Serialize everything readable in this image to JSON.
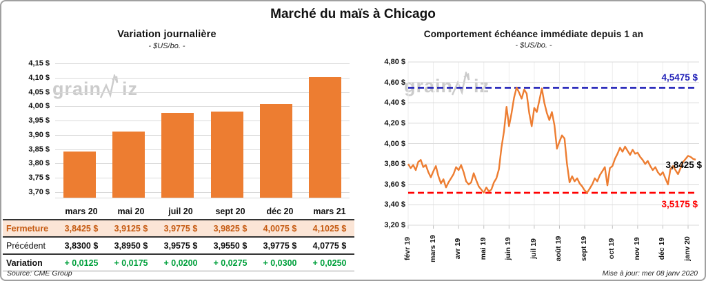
{
  "title": "Marché du maïs à Chicago",
  "footer": {
    "source": "Source: CME Group",
    "updated": "Mise à jour: mer 08 janv 2020"
  },
  "watermark": {
    "left_text": "grain",
    "right_text": "iz"
  },
  "colors": {
    "orange": "#ED7D31",
    "fermeture_text": "#C55A11",
    "fermeture_bg": "#FBE5D6",
    "variation_green": "#00A03C",
    "max_blue": "#2121B8",
    "min_red": "#FF0000",
    "gridline": "#D9D9D9",
    "watermark_gray": "#C3C3C3"
  },
  "table": {
    "columns": [
      "mars 20",
      "mai 20",
      "juil 20",
      "sept 20",
      "déc 20",
      "mars 21"
    ],
    "rows": [
      {
        "label": "Fermeture",
        "style": "fermeture",
        "values": [
          "3,8425 $",
          "3,9125 $",
          "3,9775 $",
          "3,9825 $",
          "4,0075 $",
          "4,1025 $"
        ]
      },
      {
        "label": "Précédent",
        "style": "precedent",
        "values": [
          "3,8300 $",
          "3,8950 $",
          "3,9575 $",
          "3,9550 $",
          "3,9775 $",
          "4,0775 $"
        ]
      },
      {
        "label": "Variation",
        "style": "variation",
        "values": [
          "+ 0,0125",
          "+ 0,0175",
          "+ 0,0200",
          "+ 0,0275",
          "+ 0,0300",
          "+ 0,0250"
        ]
      }
    ]
  },
  "chart_data": [
    {
      "type": "bar",
      "title": "Variation journalière",
      "subtitle": "- $US/bo. -",
      "categories": [
        "mars 20",
        "mai 20",
        "juil 20",
        "sept 20",
        "déc 20",
        "mars 21"
      ],
      "values": [
        3.8425,
        3.9125,
        3.9775,
        3.9825,
        4.0075,
        4.1025
      ],
      "ylim": [
        3.68,
        4.15
      ],
      "ytick_min": 3.7,
      "ytick_max": 4.15,
      "ytick_step": 0.05,
      "ytick_format": "n,nn $",
      "grid": true,
      "bar_color": "#ED7D31"
    },
    {
      "type": "line",
      "title": "Comportement échéance immédiate depuis 1 an",
      "subtitle": "- $US/bo. -",
      "x_labels": [
        "févr 19",
        "mars 19",
        "avr 19",
        "mai 19",
        "juin 19",
        "juil 19",
        "août 19",
        "sept 19",
        "oct 19",
        "nov 19",
        "déc 19",
        "janv 20"
      ],
      "month_start_index": [
        0,
        10,
        20,
        30,
        40,
        50,
        60,
        70,
        81,
        91,
        101,
        111
      ],
      "values": [
        3.8,
        3.76,
        3.79,
        3.74,
        3.82,
        3.84,
        3.77,
        3.79,
        3.72,
        3.67,
        3.73,
        3.78,
        3.68,
        3.61,
        3.65,
        3.57,
        3.62,
        3.66,
        3.7,
        3.77,
        3.74,
        3.79,
        3.72,
        3.63,
        3.6,
        3.62,
        3.71,
        3.64,
        3.58,
        3.55,
        3.52,
        3.57,
        3.53,
        3.55,
        3.62,
        3.66,
        3.75,
        3.96,
        4.12,
        4.36,
        4.17,
        4.3,
        4.45,
        4.55,
        4.5,
        4.44,
        4.53,
        4.49,
        4.3,
        4.17,
        4.35,
        4.31,
        4.42,
        4.54,
        4.4,
        4.3,
        4.23,
        4.31,
        4.18,
        3.95,
        4.02,
        4.08,
        4.05,
        3.8,
        3.62,
        3.68,
        3.63,
        3.66,
        3.61,
        3.58,
        3.54,
        3.52,
        3.56,
        3.6,
        3.66,
        3.63,
        3.69,
        3.73,
        3.77,
        3.59,
        3.76,
        3.78,
        3.85,
        3.9,
        3.96,
        3.92,
        3.97,
        3.93,
        3.89,
        3.94,
        3.9,
        3.91,
        3.87,
        3.84,
        3.8,
        3.83,
        3.78,
        3.74,
        3.77,
        3.72,
        3.69,
        3.72,
        3.66,
        3.6,
        3.75,
        3.78,
        3.74,
        3.7,
        3.76,
        3.82,
        3.85,
        3.88,
        3.87,
        3.85,
        3.8425
      ],
      "ylim": [
        3.2,
        4.8
      ],
      "ytick_step": 0.2,
      "grid": true,
      "legend": "none",
      "line_color": "#ED7D31",
      "annotations": [
        {
          "label": "4,5475 $",
          "value": 4.5475,
          "color": "#2121B8",
          "line": "dashed"
        },
        {
          "label": "3,8425 $",
          "value": 3.8425,
          "color": "#000000",
          "line": "none"
        },
        {
          "label": "3,5175 $",
          "value": 3.5175,
          "color": "#FF0000",
          "line": "dashed"
        }
      ]
    }
  ]
}
